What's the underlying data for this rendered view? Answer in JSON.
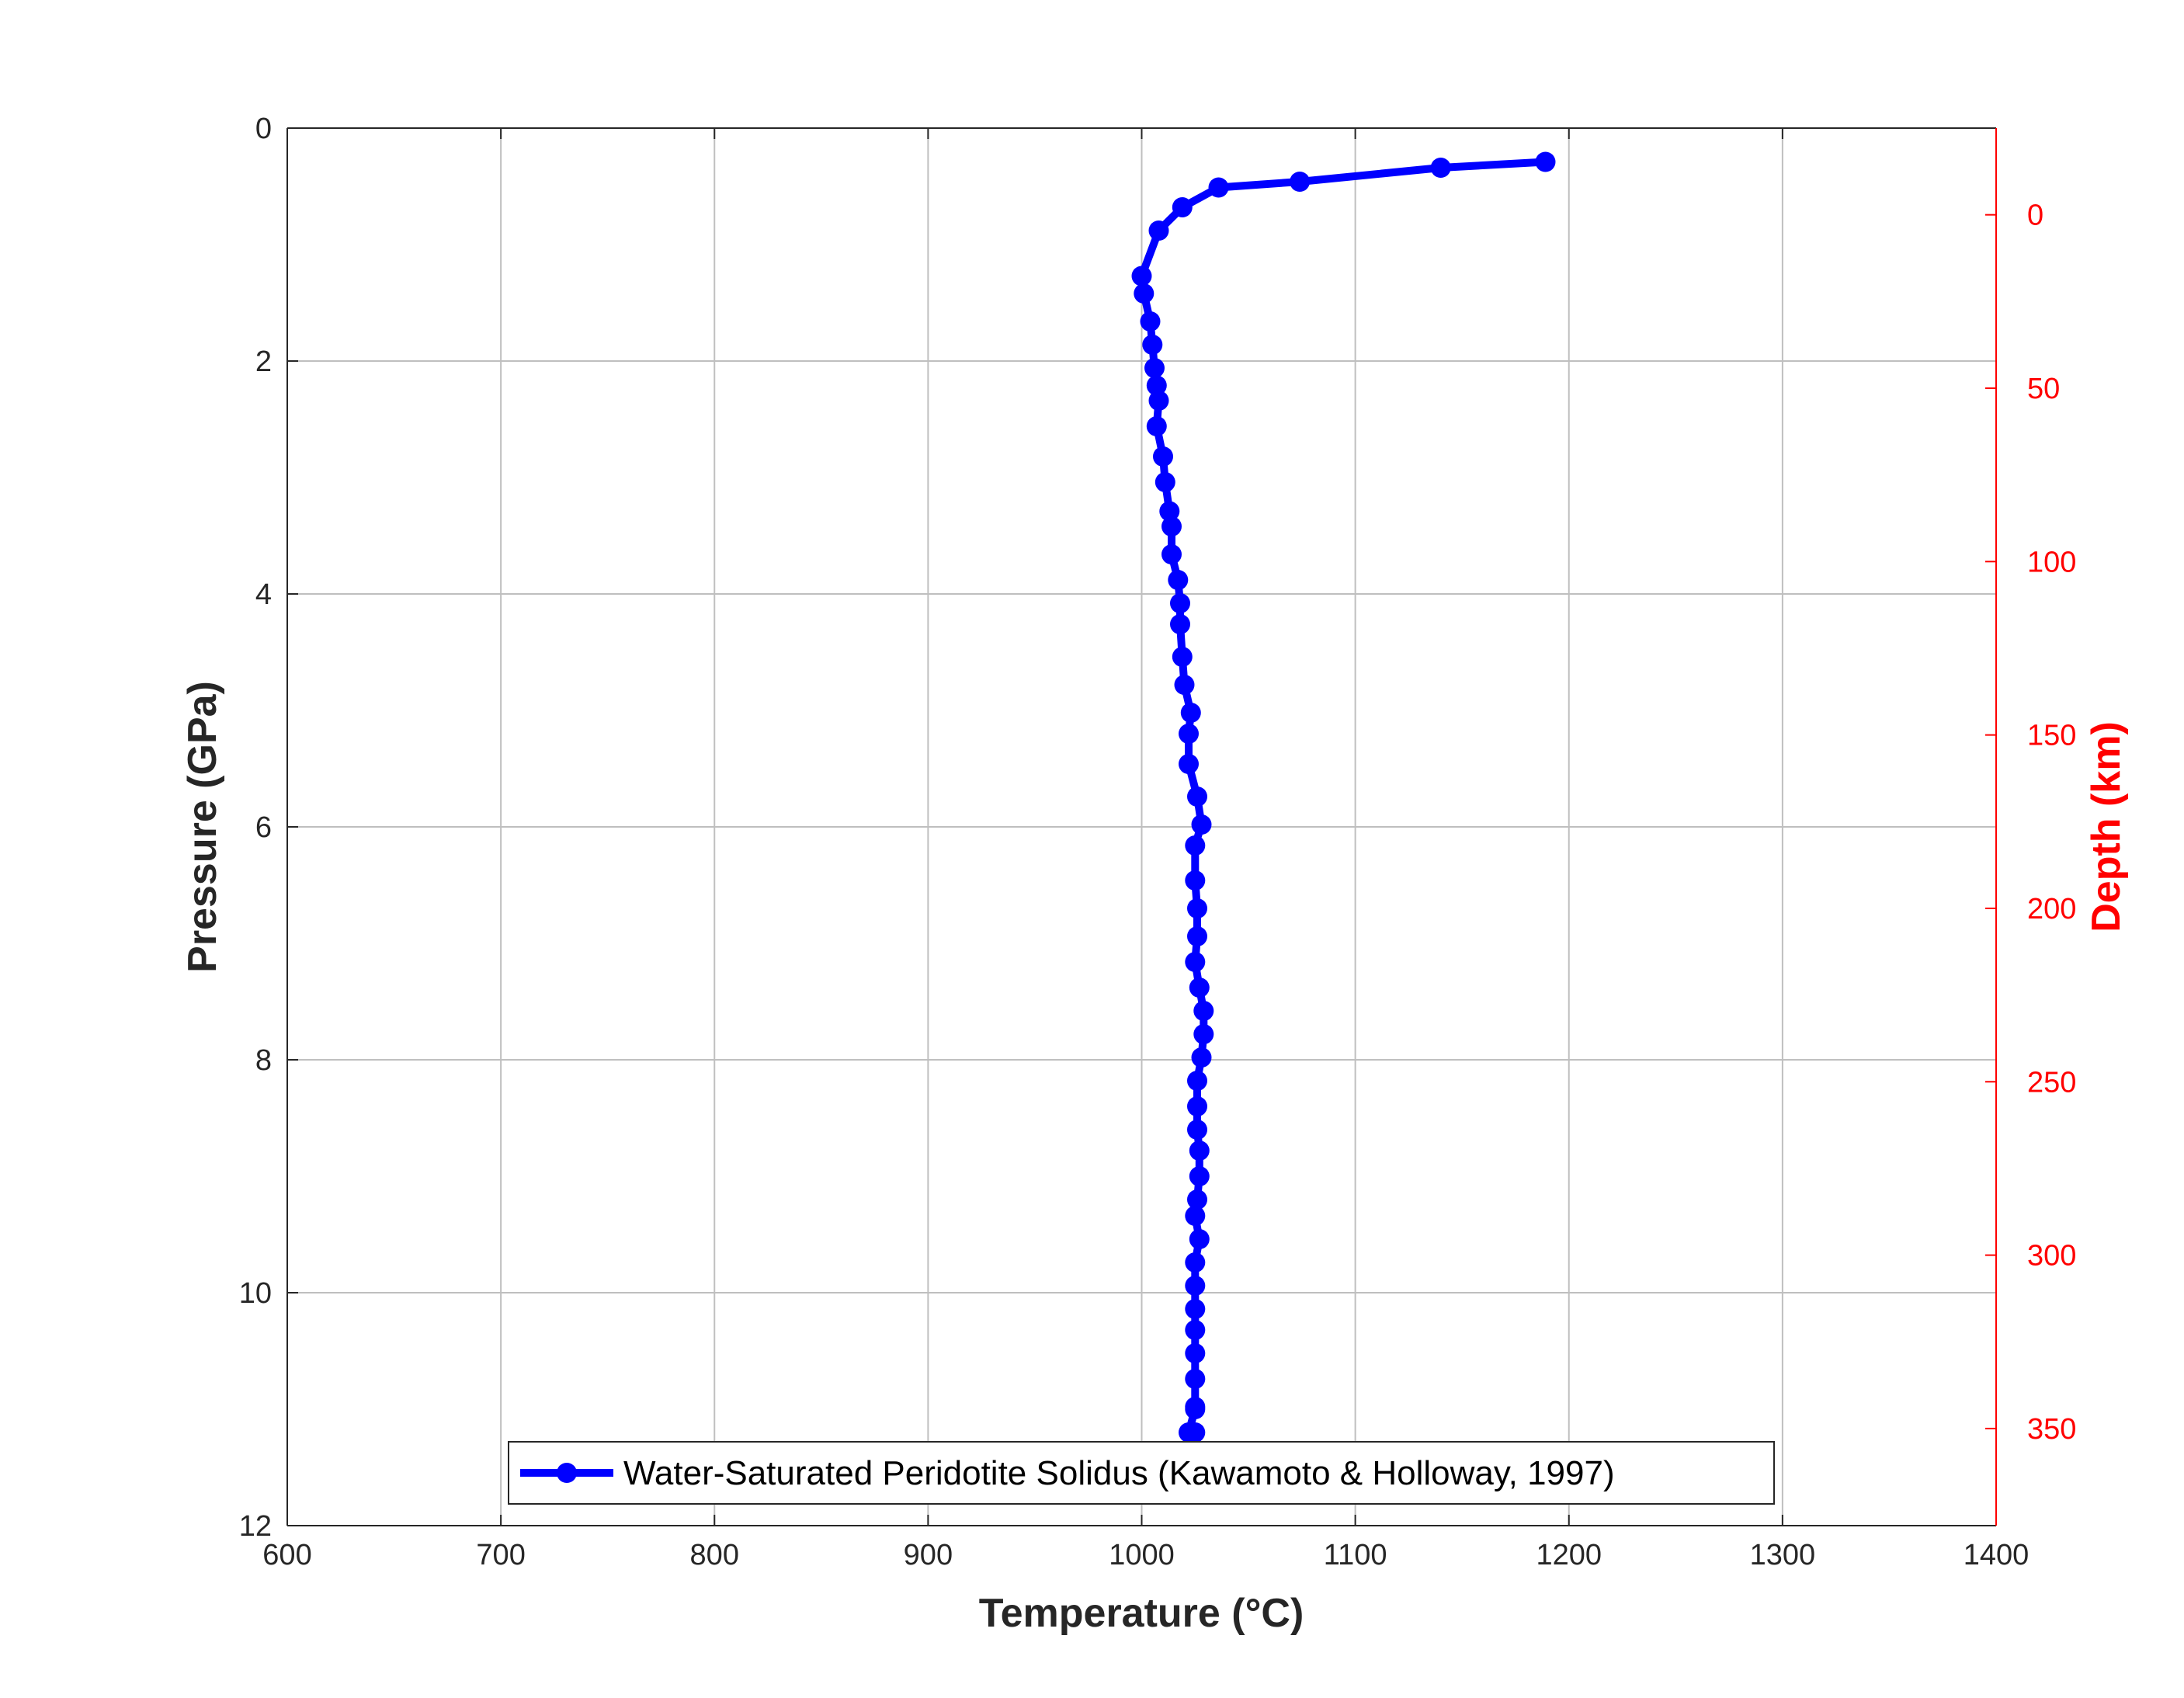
{
  "chart_data": {
    "type": "line",
    "title": "",
    "xlabel": "Temperature (°C)",
    "ylabel": "Pressure (GPa)",
    "y2label": "Depth (km)",
    "xlim": [
      600,
      1400
    ],
    "ylim": [
      0,
      12
    ],
    "y_reversed": true,
    "y2lim": [
      -25,
      378
    ],
    "x_ticks": [
      "600",
      "700",
      "800",
      "900",
      "1000",
      "1100",
      "1200",
      "1300",
      "1400"
    ],
    "y_ticks": [
      "0",
      "2",
      "4",
      "6",
      "8",
      "10",
      "12"
    ],
    "y2_ticks": [
      "0",
      "50",
      "100",
      "150",
      "200",
      "250",
      "300",
      "350"
    ],
    "grid": true,
    "legend_position": "bottom-center",
    "colors": {
      "series": "#0000ff",
      "right_axis": "#ff0000",
      "grid": "#bfbfbf",
      "axis": "#262626"
    },
    "series": [
      {
        "name": "Water-Saturated Peridotite Solidus (Kawamoto & Holloway, 1997)",
        "marker": "circle",
        "x": [
          1189,
          1140,
          1074,
          1036,
          1019,
          1008,
          1000,
          1001,
          1004,
          1005,
          1006,
          1007,
          1008,
          1007,
          1010,
          1011,
          1013,
          1014,
          1014,
          1017,
          1018,
          1018,
          1019,
          1020,
          1023,
          1022,
          1022,
          1026,
          1028,
          1025,
          1025,
          1026,
          1026,
          1025,
          1027,
          1029,
          1029,
          1028,
          1026,
          1026,
          1026,
          1027,
          1027,
          1026,
          1025,
          1027,
          1025,
          1025,
          1025,
          1025,
          1025,
          1025,
          1025,
          1025,
          1022,
          1025
        ],
        "y": [
          0.29,
          0.34,
          0.46,
          0.51,
          0.68,
          0.88,
          1.27,
          1.42,
          1.66,
          1.86,
          2.06,
          2.21,
          2.34,
          2.56,
          2.82,
          3.04,
          3.29,
          3.42,
          3.66,
          3.88,
          4.08,
          4.26,
          4.54,
          4.78,
          5.02,
          5.2,
          5.46,
          5.74,
          5.98,
          6.16,
          6.46,
          6.7,
          6.94,
          7.16,
          7.38,
          7.58,
          7.78,
          7.98,
          8.18,
          8.4,
          8.6,
          8.78,
          9.0,
          9.2,
          9.34,
          9.54,
          9.74,
          9.94,
          10.14,
          10.32,
          10.52,
          10.74,
          10.98,
          11.0,
          11.2,
          11.2
        ]
      }
    ],
    "legend": {
      "entries": [
        "Water-Saturated Peridotite Solidus (Kawamoto & Holloway, 1997)"
      ]
    }
  }
}
